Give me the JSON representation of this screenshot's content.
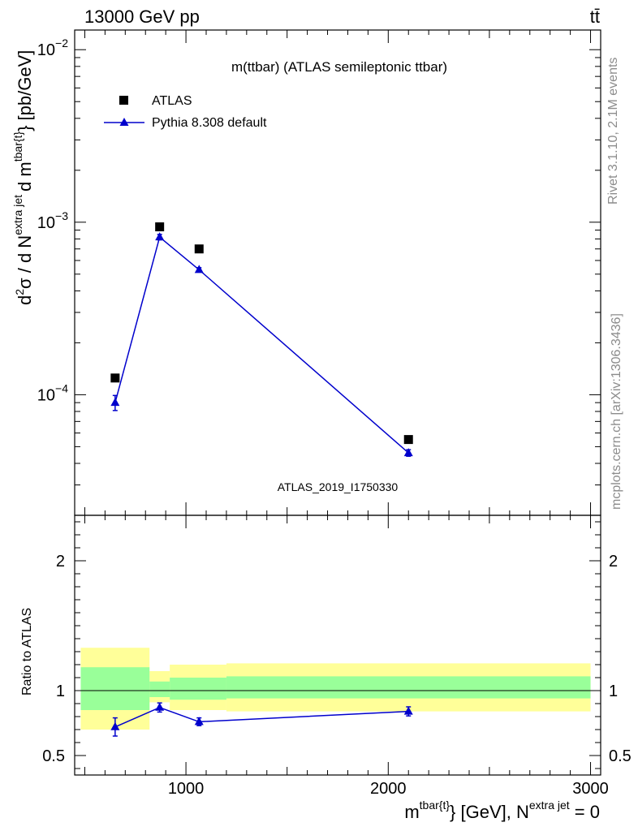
{
  "header": {
    "left": "13000 GeV pp",
    "right": "tt̄"
  },
  "side_labels": {
    "rivet": "Rivet 3.1.10,  2.1M events",
    "mcplots": "mcplots.cern.ch [arXiv:1306.3436]"
  },
  "colors": {
    "data": "#000000",
    "mc": "#0000cc",
    "band_inner": "#99ff99",
    "band_outer": "#ffff99",
    "watermark": "#8c8c8c"
  },
  "chart_data": [
    {
      "type": "scatter",
      "title": "m(ttbar) (ATLAS semileptonic ttbar)",
      "analysis_tag": "ATLAS_2019_I1750330",
      "ylabel": "d²σ / d N^{extra jet} d m^{tbar{t}} [pb/GeV]",
      "ylabel_parts": {
        "a": "d",
        "b": "2",
        "c": "σ / d N",
        "d": "extra jet",
        "e": "d m",
        "f": "tbar{t}",
        "g": "} [pb/GeV]"
      },
      "yscale": "log",
      "ylim": [
        2e-05,
        0.013
      ],
      "xlim": [
        450,
        3050
      ],
      "y_ticks": [
        {
          "v": 0.0001,
          "base": "10",
          "exp": "−4"
        },
        {
          "v": 0.001,
          "base": "10",
          "exp": "−3"
        },
        {
          "v": 0.01,
          "base": "10",
          "exp": "−2"
        }
      ],
      "legend": {
        "position": "top-left",
        "entries": [
          "ATLAS",
          "Pythia 8.308 default"
        ]
      },
      "series": [
        {
          "name": "ATLAS",
          "x": [
            650,
            870,
            1065,
            2100
          ],
          "y": [
            0.000125,
            0.00094,
            0.0007,
            5.5e-05
          ]
        },
        {
          "name": "Pythia 8.308 default",
          "x": [
            650,
            870,
            1065,
            2100
          ],
          "y": [
            9e-05,
            0.00082,
            0.00053,
            4.6e-05
          ],
          "yerr": [
            9e-06,
            3e-05,
            1.5e-05,
            2e-06
          ]
        }
      ]
    },
    {
      "type": "line",
      "ylabel": "Ratio to ATLAS",
      "ylim": [
        0.35,
        2.35
      ],
      "xlim": [
        450,
        3050
      ],
      "x_ticks": [
        "1000",
        "2000",
        "3000"
      ],
      "x_tick_values": [
        1000,
        2000,
        3000
      ],
      "y_ticks": [
        "0.5",
        "1",
        "2"
      ],
      "y_tick_values": [
        0.5,
        1,
        2
      ],
      "xlabel_parts": {
        "a": "m",
        "b": "tbar{t}",
        "c": "} [GeV], N",
        "d": "extra jet",
        "e": " = 0"
      },
      "series": [
        {
          "name": "Pythia 8.308 default",
          "x": [
            650,
            870,
            1065,
            2100
          ],
          "y": [
            0.72,
            0.87,
            0.76,
            0.84
          ],
          "yerr": [
            0.07,
            0.035,
            0.03,
            0.035
          ]
        }
      ],
      "bands": [
        {
          "x0": 480,
          "x1": 820,
          "inner": [
            0.85,
            1.18
          ],
          "outer": [
            0.7,
            1.33
          ]
        },
        {
          "x0": 820,
          "x1": 920,
          "inner": [
            0.95,
            1.07
          ],
          "outer": [
            0.91,
            1.15
          ]
        },
        {
          "x0": 920,
          "x1": 1200,
          "inner": [
            0.93,
            1.1
          ],
          "outer": [
            0.85,
            1.2
          ]
        },
        {
          "x0": 1200,
          "x1": 3000,
          "inner": [
            0.94,
            1.11
          ],
          "outer": [
            0.84,
            1.21
          ]
        }
      ]
    }
  ]
}
